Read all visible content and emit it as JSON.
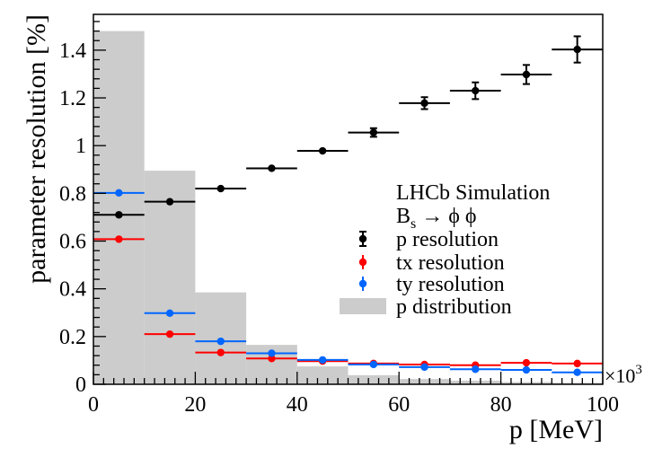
{
  "chart_data": {
    "type": "scatter",
    "title": "",
    "xlabel": "p [MeV]",
    "ylabel": "parameter resolution [%]",
    "x_multiplier": "×10",
    "x_multiplier_exp": "3",
    "xlim": [
      0,
      100
    ],
    "ylim": [
      0,
      1.55
    ],
    "xticks": [
      0,
      20,
      40,
      60,
      80,
      100
    ],
    "xtick_labels": [
      "0",
      "20",
      "40",
      "60",
      "80",
      "100"
    ],
    "yticks": [
      0,
      0.2,
      0.4,
      0.6,
      0.8,
      1,
      1.2,
      1.4
    ],
    "ytick_labels": [
      "0",
      "0.2",
      "0.4",
      "0.6",
      "0.8",
      "1",
      "1.2",
      "1.4"
    ],
    "legend": {
      "position": "right",
      "header": "LHCb Simulation",
      "subheader_main": "B",
      "subheader_sub": "s",
      "subheader_rest": " → ϕ ϕ"
    },
    "histogram": {
      "name": "p distribution",
      "color": "#cccccc",
      "bin_edges": [
        0,
        10,
        20,
        30,
        40,
        50,
        60,
        70,
        80,
        90,
        100
      ],
      "values": [
        1.48,
        0.895,
        0.385,
        0.165,
        0.075,
        0.038,
        0.022,
        0.015,
        0.009,
        0.006
      ]
    },
    "series": [
      {
        "name": "p resolution",
        "color": "#000000",
        "x": [
          5,
          15,
          25,
          35,
          45,
          55,
          65,
          75,
          85,
          95
        ],
        "xerr": 5,
        "y": [
          0.71,
          0.765,
          0.82,
          0.905,
          0.978,
          1.055,
          1.178,
          1.23,
          1.298,
          1.403
        ],
        "yerr": [
          0.01,
          0.01,
          0.01,
          0.01,
          0.012,
          0.018,
          0.025,
          0.035,
          0.04,
          0.055
        ]
      },
      {
        "name": "tx resolution",
        "color": "#ff0000",
        "x": [
          5,
          15,
          25,
          35,
          45,
          55,
          65,
          75,
          85,
          95
        ],
        "xerr": 5,
        "y": [
          0.608,
          0.21,
          0.133,
          0.108,
          0.097,
          0.087,
          0.083,
          0.08,
          0.09,
          0.087
        ],
        "yerr": [
          0.004,
          0.004,
          0.003,
          0.003,
          0.003,
          0.003,
          0.004,
          0.005,
          0.006,
          0.007
        ]
      },
      {
        "name": "ty resolution",
        "color": "#0066ff",
        "x": [
          5,
          15,
          25,
          35,
          45,
          55,
          65,
          75,
          85,
          95
        ],
        "xerr": 5,
        "y": [
          0.802,
          0.298,
          0.18,
          0.13,
          0.102,
          0.083,
          0.072,
          0.063,
          0.06,
          0.05
        ],
        "yerr": [
          0.005,
          0.005,
          0.004,
          0.003,
          0.003,
          0.003,
          0.004,
          0.004,
          0.005,
          0.006
        ]
      }
    ]
  }
}
